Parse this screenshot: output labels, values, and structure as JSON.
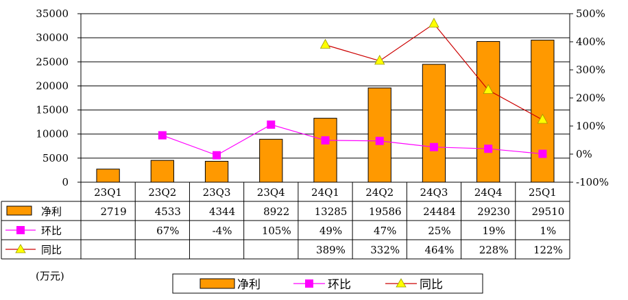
{
  "chart_data": {
    "type": "bar",
    "categories": [
      "23Q1",
      "23Q2",
      "23Q3",
      "23Q4",
      "24Q1",
      "24Q2",
      "24Q3",
      "24Q4",
      "25Q1"
    ],
    "series": [
      {
        "name": "净利",
        "kind": "bar",
        "axis": "left",
        "values": [
          2719,
          4533,
          4344,
          8922,
          13285,
          19586,
          24484,
          29230,
          29510
        ],
        "labels": [
          "2719",
          "4533",
          "4344",
          "8922",
          "13285",
          "19586",
          "24484",
          "29230",
          "29510"
        ],
        "color": "#FF9900"
      },
      {
        "name": "环比",
        "kind": "line",
        "axis": "right",
        "marker": "square",
        "values": [
          null,
          67,
          -4,
          105,
          49,
          47,
          25,
          19,
          1
        ],
        "labels": [
          "",
          "67%",
          "-4%",
          "105%",
          "49%",
          "47%",
          "25%",
          "19%",
          "1%"
        ],
        "color": "#FF00FF"
      },
      {
        "name": "同比",
        "kind": "line",
        "axis": "right",
        "marker": "triangle",
        "values": [
          null,
          null,
          null,
          null,
          389,
          332,
          464,
          228,
          122
        ],
        "labels": [
          "",
          "",
          "",
          "",
          "389%",
          "332%",
          "464%",
          "228%",
          "122%"
        ],
        "color": "#CC0000",
        "marker_color": "#FFFF00"
      }
    ],
    "y_left": {
      "min": 0,
      "max": 35000,
      "ticks": [
        "0",
        "5000",
        "10000",
        "15000",
        "20000",
        "25000",
        "30000",
        "35000"
      ]
    },
    "y_right": {
      "min": -100,
      "max": 500,
      "ticks": [
        "-100%",
        "0%",
        "100%",
        "200%",
        "300%",
        "400%",
        "500%"
      ]
    },
    "unit_label": "(万元)",
    "legend_position": "bottom",
    "grid": true
  }
}
